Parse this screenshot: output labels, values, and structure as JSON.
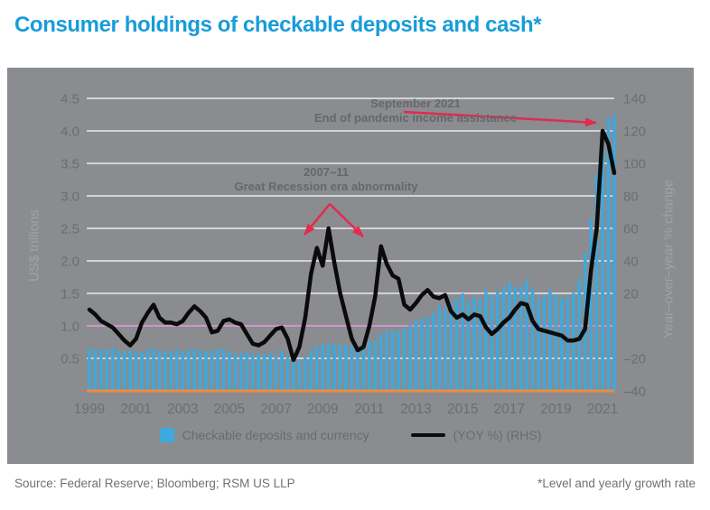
{
  "title": "Consumer holdings of checkable deposits and cash*",
  "footer": {
    "source": "Source: Federal Reserve; Bloomberg; RSM US LLP",
    "note": "*Level and yearly growth rate"
  },
  "legend": {
    "bars_label": "Checkable deposits and currency",
    "line_label": "(YOY %) (RHS)"
  },
  "annotations": {
    "sep2021": {
      "line1": "September 2021",
      "line2": "End of pandemic income assistance",
      "arrows": [
        [
          439,
          49,
          652,
          61
        ]
      ]
    },
    "great_recession": {
      "line1": "2007–11",
      "line2": "Great Recession era abnormality",
      "arrows": [
        [
          357,
          151,
          329,
          185
        ],
        [
          357,
          151,
          394,
          187
        ]
      ]
    }
  },
  "colors": {
    "title": "#189CD9",
    "panel_bg": "#8A8C8F",
    "bar": "#3FA8DC",
    "line": "#0B0B0B",
    "zero_line": "#CD96CD",
    "baseline": "#EF8A3D",
    "gridline": "#D2D3D5",
    "arrow": "#E42A4D"
  },
  "chart_data": {
    "type": "bar+line combo",
    "frequency": "quarterly",
    "x_start": "1999 Q1",
    "x_end": "2021 Q3",
    "x_tick_labels": [
      "1999",
      "2001",
      "2003",
      "2005",
      "2007",
      "2009",
      "2011",
      "2013",
      "2015",
      "2017",
      "2019",
      "2021"
    ],
    "left_axis": {
      "label": "US$ trillions",
      "range": [
        0,
        4.5
      ],
      "ticks": [
        {
          "label": "4.5",
          "value": 4.5
        },
        {
          "label": "4.0",
          "value": 4.0
        },
        {
          "label": "3.5",
          "value": 3.5
        },
        {
          "label": "3.0",
          "value": 3.0
        },
        {
          "label": "2.5",
          "value": 2.5
        },
        {
          "label": "2.0",
          "value": 2.0
        },
        {
          "label": "1.5",
          "value": 1.5
        },
        {
          "label": "1.0",
          "value": 1.0
        },
        {
          "label": "0.5",
          "value": 0.5
        }
      ]
    },
    "right_axis": {
      "label": "Year–over–year % change",
      "range": [
        -40,
        140
      ],
      "zero_line_value": 0,
      "ticks": [
        {
          "label": "140",
          "value": 140
        },
        {
          "label": "120",
          "value": 120
        },
        {
          "label": "100",
          "value": 100
        },
        {
          "label": "80",
          "value": 80
        },
        {
          "label": "60",
          "value": 60
        },
        {
          "label": "40",
          "value": 40
        },
        {
          "label": "20",
          "value": 20
        },
        {
          "label": "–20",
          "value": -20
        },
        {
          "label": "–40",
          "value": -40
        }
      ]
    },
    "series": [
      {
        "name": "Checkable deposits and currency",
        "type": "bar",
        "axis": "left",
        "values": [
          0.66,
          0.64,
          0.64,
          0.65,
          0.67,
          0.62,
          0.61,
          0.62,
          0.6,
          0.59,
          0.64,
          0.65,
          0.62,
          0.6,
          0.61,
          0.64,
          0.6,
          0.64,
          0.64,
          0.64,
          0.6,
          0.62,
          0.65,
          0.64,
          0.6,
          0.57,
          0.58,
          0.6,
          0.56,
          0.57,
          0.57,
          0.58,
          0.56,
          0.62,
          0.53,
          0.46,
          0.48,
          0.52,
          0.62,
          0.69,
          0.71,
          0.74,
          0.71,
          0.72,
          0.71,
          0.69,
          0.69,
          0.74,
          0.76,
          0.78,
          0.88,
          0.92,
          0.93,
          0.92,
          0.97,
          1.01,
          1.08,
          1.11,
          1.15,
          1.2,
          1.32,
          1.27,
          1.36,
          1.43,
          1.5,
          1.38,
          1.45,
          1.42,
          1.55,
          1.48,
          1.52,
          1.6,
          1.68,
          1.59,
          1.62,
          1.71,
          1.57,
          1.41,
          1.48,
          1.55,
          1.48,
          1.43,
          1.45,
          1.51,
          1.72,
          2.12,
          2.65,
          3.33,
          3.72,
          4.2,
          4.25
        ]
      },
      {
        "name": "(YOY %) (RHS)",
        "type": "line",
        "axis": "right",
        "values": [
          10,
          7,
          3,
          1,
          -1,
          -5,
          -9,
          -12,
          -8,
          2,
          8,
          13,
          5,
          2,
          2,
          1,
          3,
          8,
          12,
          9,
          5,
          -4,
          -3,
          3,
          4,
          2,
          1,
          -5,
          -11,
          -12,
          -10,
          -6,
          -2,
          -1,
          -8,
          -21,
          -13,
          5,
          32,
          48,
          37,
          60,
          39,
          20,
          6,
          -8,
          -15,
          -13,
          0,
          18,
          49,
          38,
          31,
          29,
          13,
          10,
          14,
          19,
          22,
          18,
          17,
          19,
          9,
          5,
          7,
          4,
          7,
          6,
          -1,
          -5,
          -2,
          2,
          5,
          10,
          14,
          13,
          3,
          -2,
          -3,
          -4,
          -5,
          -6,
          -9,
          -9,
          -8,
          -2,
          34,
          60,
          120,
          112,
          94
        ]
      }
    ]
  }
}
